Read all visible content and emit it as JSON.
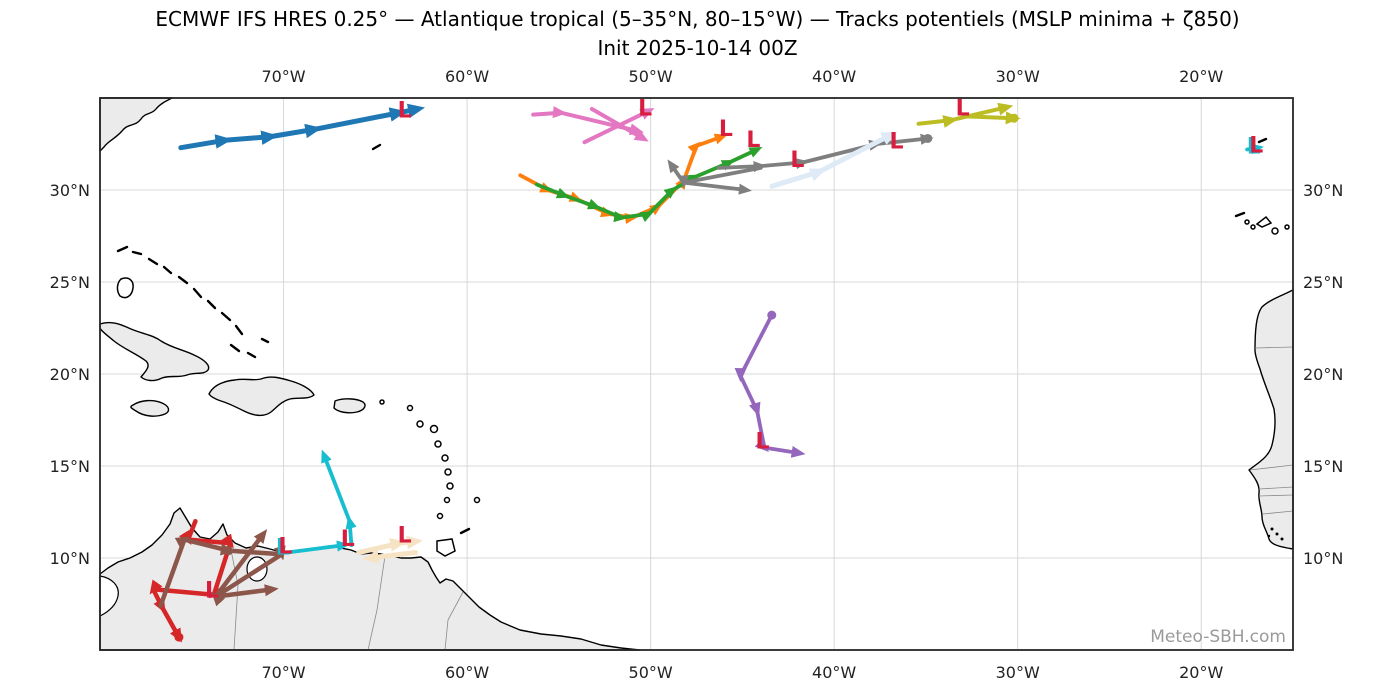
{
  "chart_data": {
    "type": "map-tracks",
    "title": "ECMWF IFS HRES 0.25° — Atlantique tropical (5–35°N, 80–15°W) — Tracks potentiels (MSLP minima + ζ850)",
    "subtitle": "Init 2025-10-14 00Z",
    "watermark": "Meteo-SBH.com",
    "grid": true,
    "extent": {
      "lon_min": -80,
      "lon_max": -15,
      "lat_min": 5,
      "lat_max": 35
    },
    "x_ticks": [
      {
        "lon": -70,
        "label": "70°W"
      },
      {
        "lon": -60,
        "label": "60°W"
      },
      {
        "lon": -50,
        "label": "50°W"
      },
      {
        "lon": -40,
        "label": "40°W"
      },
      {
        "lon": -30,
        "label": "30°W"
      },
      {
        "lon": -20,
        "label": "20°W"
      }
    ],
    "y_ticks": [
      {
        "lat": 30,
        "label": "30°N"
      },
      {
        "lat": 25,
        "label": "25°N"
      },
      {
        "lat": 20,
        "label": "20°N"
      },
      {
        "lat": 15,
        "label": "15°N"
      },
      {
        "lat": 10,
        "label": "10°N"
      }
    ],
    "low_marker": {
      "glyph": "L",
      "color": "#d81e3f"
    },
    "tracks": [
      {
        "name": "blue",
        "color": "#1f77b4",
        "width": 5,
        "arrow": 17,
        "segments": [
          [
            [
              -75.6,
              32.3
            ],
            [
              -73.2,
              32.7
            ],
            [
              -70.7,
              32.9
            ],
            [
              -68.3,
              33.3
            ],
            [
              -63.7,
              34.2
            ],
            [
              -62.7,
              34.4
            ]
          ]
        ],
        "lows": [
          {
            "lon": -63.4,
            "lat": 34.3
          }
        ],
        "dots": []
      },
      {
        "name": "pink",
        "color": "#e377c2",
        "width": 4,
        "arrow": 14,
        "segments": [
          [
            [
              -56.4,
              34.1
            ],
            [
              -54.9,
              34.2
            ],
            [
              -50.7,
              33.2
            ]
          ],
          [
            [
              -53.2,
              34.4
            ],
            [
              -50.4,
              32.8
            ]
          ],
          [
            [
              -53.6,
              32.6
            ],
            [
              -50.1,
              34.3
            ]
          ]
        ],
        "lows": [
          {
            "lon": -50.3,
            "lat": 34.4
          }
        ],
        "dots": []
      },
      {
        "name": "orange",
        "color": "#ff7f0e",
        "width": 3.8,
        "arrow": 13,
        "segments": [
          [
            [
              -57.1,
              30.8
            ],
            [
              -55.6,
              30.0
            ],
            [
              -54.0,
              29.5
            ],
            [
              -52.3,
              28.7
            ],
            [
              -51.0,
              28.5
            ],
            [
              -49.6,
              29.1
            ],
            [
              -48.2,
              30.5
            ],
            [
              -47.5,
              32.4
            ],
            [
              -46.1,
              32.9
            ]
          ]
        ],
        "lows": [
          {
            "lon": -45.9,
            "lat": 33.3
          }
        ],
        "dots": []
      },
      {
        "name": "green",
        "color": "#2ca02c",
        "width": 3.8,
        "arrow": 13,
        "segments": [
          [
            [
              -56.2,
              30.3
            ],
            [
              -54.7,
              29.7
            ],
            [
              -53.0,
              29.1
            ],
            [
              -51.6,
              28.5
            ],
            [
              -50.1,
              28.7
            ],
            [
              -48.8,
              30.0
            ],
            [
              -47.6,
              30.7
            ],
            [
              -45.7,
              31.5
            ],
            [
              -44.2,
              32.2
            ]
          ]
        ],
        "lows": [
          {
            "lon": -44.4,
            "lat": 32.7
          }
        ],
        "dots": []
      },
      {
        "name": "gray",
        "color": "#7f7f7f",
        "width": 3.8,
        "arrow": 13,
        "segments": [
          [
            [
              -44.0,
              31.2
            ],
            [
              -48.2,
              30.4
            ],
            [
              -44.8,
              30.0
            ]
          ],
          [
            [
              -48.2,
              30.4
            ],
            [
              -48.9,
              31.4
            ]
          ],
          [
            [
              -46.3,
              31.2
            ],
            [
              -44.0,
              31.3
            ],
            [
              -41.7,
              31.5
            ],
            [
              -37.7,
              32.5
            ],
            [
              -34.9,
              32.8
            ]
          ]
        ],
        "lows": [
          {
            "lon": -42.0,
            "lat": 31.6
          },
          {
            "lon": -36.6,
            "lat": 32.6
          }
        ],
        "dots": [
          [
            -34.9,
            32.8
          ]
        ]
      },
      {
        "name": "olive",
        "color": "#bcbd22",
        "width": 4,
        "arrow": 15,
        "segments": [
          [
            [
              -35.4,
              33.6
            ],
            [
              -33.6,
              33.8
            ],
            [
              -30.6,
              34.5
            ]
          ],
          [
            [
              -32.8,
              34.0
            ],
            [
              -30.2,
              33.9
            ]
          ]
        ],
        "lows": [
          {
            "lon": -33.0,
            "lat": 34.4
          }
        ],
        "dots": [
          [
            -30.2,
            33.9
          ]
        ]
      },
      {
        "name": "paleblue",
        "color": "#dfeaf7",
        "width": 5,
        "arrow": 16,
        "segments": [
          [
            [
              -43.4,
              30.2
            ],
            [
              -40.8,
              31.0
            ],
            [
              -36.9,
              33.0
            ]
          ]
        ],
        "lows": [],
        "dots": []
      },
      {
        "name": "purple",
        "color": "#9467bd",
        "width": 3.8,
        "arrow": 14,
        "segments": [
          [
            [
              -43.4,
              23.2
            ],
            [
              -45.1,
              19.9
            ],
            [
              -44.2,
              18.0
            ],
            [
              -43.8,
              16.0
            ],
            [
              -41.9,
              15.7
            ]
          ]
        ],
        "lows": [
          {
            "lon": -43.9,
            "lat": 16.3
          }
        ],
        "dots": [
          [
            -43.4,
            23.2
          ]
        ]
      },
      {
        "name": "cyan",
        "color": "#17becf",
        "width": 3.8,
        "arrow": 13,
        "segments": [
          [
            [
              -69.8,
              10.3
            ],
            [
              -66.7,
              10.7
            ]
          ],
          [
            [
              -66.3,
              10.7
            ],
            [
              -66.4,
              12.0
            ],
            [
              -67.8,
              15.6
            ]
          ],
          [
            [
              -17.5,
              32.2
            ],
            [
              -16.9,
              32.3
            ]
          ]
        ],
        "lows": [
          {
            "lon": -66.5,
            "lat": 11.0
          },
          {
            "lon": -69.9,
            "lat": 10.6,
            "shadow": true
          },
          {
            "lon": -17.0,
            "lat": 32.4,
            "shadow": true
          }
        ],
        "dots": []
      },
      {
        "name": "wheat",
        "color": "#f5e3c4",
        "width": 5,
        "arrow": 16,
        "segments": [
          [
            [
              -65.9,
              10.3
            ],
            [
              -63.7,
              10.8
            ],
            [
              -62.8,
              10.9
            ]
          ],
          [
            [
              -62.8,
              10.3
            ],
            [
              -65.3,
              10.0
            ]
          ]
        ],
        "lows": [
          {
            "lon": -63.4,
            "lat": 11.2
          }
        ],
        "dots": []
      },
      {
        "name": "red",
        "color": "#d62728",
        "width": 4.5,
        "arrow": 14,
        "segments": [
          [
            [
              -74.8,
              12.0
            ],
            [
              -75.2,
              11.0
            ],
            [
              -72.9,
              10.8
            ],
            [
              -73.8,
              8.0
            ],
            [
              -77.1,
              8.3
            ],
            [
              -76.6,
              7.3
            ],
            [
              -75.7,
              5.7
            ]
          ]
        ],
        "lows": [
          {
            "lon": -73.9,
            "lat": 8.2
          }
        ],
        "dots": [
          [
            -75.7,
            5.7
          ]
        ]
      },
      {
        "name": "brown",
        "color": "#8c564b",
        "width": 4.5,
        "arrow": 14,
        "segments": [
          [
            [
              -76.7,
              7.4
            ],
            [
              -75.4,
              11.0
            ],
            [
              -73.0,
              10.4
            ],
            [
              -70.1,
              10.2
            ],
            [
              -73.7,
              7.9
            ],
            [
              -71.1,
              11.3
            ]
          ],
          [
            [
              -73.7,
              7.9
            ],
            [
              -70.6,
              8.3
            ]
          ]
        ],
        "lows": [],
        "dots": [
          [
            -73.0,
            10.4
          ]
        ]
      }
    ]
  }
}
